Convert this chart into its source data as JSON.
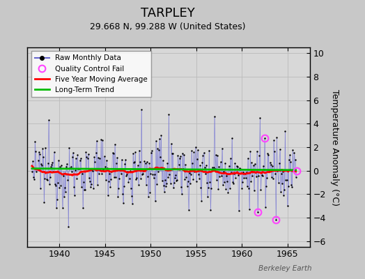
{
  "title": "TARPLEY",
  "subtitle": "29.668 N, 99.288 W (United States)",
  "ylabel": "Temperature Anomaly (°C)",
  "watermark": "Berkeley Earth",
  "xlim": [
    1936.5,
    1967.5
  ],
  "ylim": [
    -6.5,
    10.5
  ],
  "yticks": [
    -6,
    -4,
    -2,
    0,
    2,
    4,
    6,
    8,
    10
  ],
  "xticks": [
    1940,
    1945,
    1950,
    1955,
    1960,
    1965
  ],
  "bg_color": "#c8c8c8",
  "plot_bg": "#d8d8d8",
  "raw_color": "#6666cc",
  "stem_color": "#8888dd",
  "dot_color": "#000000",
  "ma_color": "#ff0000",
  "trend_color": "#00bb00",
  "qc_color": "#ff44ff",
  "seed": 12345,
  "n_months": 348,
  "start_year": 1937.0,
  "qc_times": [
    1961.75,
    1962.5,
    1963.75,
    1966.0
  ],
  "qc_vals": [
    -3.55,
    2.75,
    -4.2,
    -0.05
  ]
}
